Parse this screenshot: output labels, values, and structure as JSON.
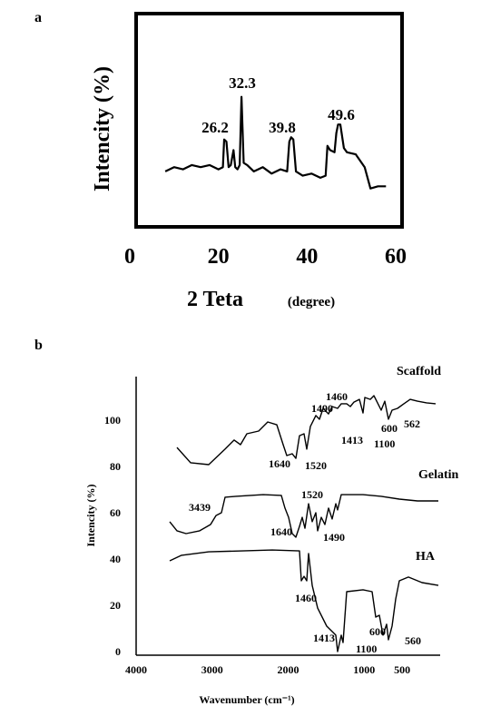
{
  "chart_data": [
    {
      "type": "line",
      "panel_label": "a",
      "y_label": "Intencity (%)",
      "x_label": "2 Teta",
      "x_label_unit": "(degree)",
      "annotations": [
        "26.2",
        "32.3",
        "39.8",
        "49.6"
      ],
      "x": [
        8,
        10,
        12,
        14,
        16,
        18,
        20,
        21,
        21.3,
        21.8,
        22.3,
        22.8,
        23.4,
        23.8,
        24.3,
        24.8,
        25.2,
        25.7,
        26.5,
        28,
        30,
        32,
        34,
        35.5,
        36,
        36.4,
        36.9,
        37.5,
        39,
        41,
        43,
        44.2,
        44.6,
        45.2,
        46.2,
        46.6,
        47,
        47.5,
        48.3,
        49,
        51,
        53,
        54.3,
        56,
        57.8
      ],
      "series": [
        {
          "color": "#000000",
          "values": [
            26,
            28,
            27,
            29,
            28,
            29,
            27,
            28,
            41,
            40,
            28,
            29,
            36,
            28,
            27,
            29,
            61,
            30,
            29,
            26,
            28,
            25,
            27,
            26,
            40,
            42,
            41,
            26,
            24,
            25,
            23,
            24,
            38,
            36,
            35,
            44,
            48,
            48,
            37,
            35,
            34,
            28,
            18,
            19,
            19
          ]
        }
      ],
      "xlim": [
        0,
        60
      ],
      "xticks": [
        0,
        20,
        40,
        60
      ],
      "ylim": [
        0,
        100
      ]
    },
    {
      "type": "line",
      "panel_label": "b",
      "y_label": "Intencity (%)",
      "x_label": "Wavenumber (cm⁻¹)",
      "xlim": [
        4000,
        0
      ],
      "xticks": [
        4000,
        3000,
        2000,
        1000,
        500
      ],
      "ylim": [
        0,
        120
      ],
      "yticks": [
        0,
        20,
        40,
        60,
        80,
        100
      ],
      "series": [
        {
          "name": "Scaffold",
          "color": "#000000",
          "annotations": [
            "1490",
            "1460",
            "1640",
            "1520",
            "1413",
            "1100",
            "600",
            "562"
          ],
          "x": [
            3463,
            3284,
            3045,
            2830,
            2710,
            2627,
            2543,
            2388,
            2269,
            2149,
            2066,
            2018,
            1946,
            1898,
            1851,
            1791,
            1755,
            1707,
            1636,
            1588,
            1540,
            1469,
            1421,
            1349,
            1301,
            1230,
            1182,
            1134,
            1063,
            1015,
            991,
            919,
            872,
            824,
            776,
            728,
            681,
            633,
            561,
            478,
            394,
            299,
            179,
            60
          ],
          "values": [
            88.2,
            81.6,
            80.8,
            87.5,
            91.4,
            89.4,
            94.1,
            95.3,
            99.2,
            98.0,
            89.4,
            84.7,
            85.5,
            83.5,
            93.3,
            94.1,
            87.5,
            97.3,
            102.0,
            100.4,
            105.1,
            102.7,
            105.9,
            105.1,
            107.1,
            107.1,
            105.9,
            107.8,
            109.0,
            103.1,
            109.8,
            109.0,
            110.6,
            107.5,
            104.3,
            108.2,
            100.4,
            104.3,
            105.1,
            107.1,
            109.0,
            108.2,
            107.5,
            107.1
          ]
        },
        {
          "name": "Gelatin",
          "color": "#000000",
          "annotations": [
            "3439",
            "1520",
            "1640",
            "1490"
          ],
          "x": [
            3558,
            3463,
            3343,
            3164,
            3021,
            2949,
            2878,
            2830,
            2687,
            2328,
            2090,
            2042,
            1994,
            1946,
            1898,
            1851,
            1815,
            1779,
            1731,
            1684,
            1636,
            1612,
            1564,
            1516,
            1469,
            1421,
            1373,
            1349,
            1301,
            1254,
            1015,
            776,
            537,
            299,
            24
          ],
          "values": [
            56.1,
            52.2,
            51.0,
            52.2,
            54.9,
            58.8,
            60.0,
            66.7,
            67.1,
            67.8,
            67.5,
            62.0,
            58.0,
            51.0,
            49.4,
            54.1,
            58.0,
            53.3,
            63.9,
            56.1,
            60.0,
            52.2,
            58.0,
            54.9,
            62.0,
            57.3,
            63.9,
            61.2,
            67.8,
            67.8,
            67.8,
            67.1,
            65.9,
            65.1,
            65.1
          ]
        },
        {
          "name": "HA",
          "color": "#000000",
          "annotations": [
            "1460",
            "1413",
            "1100",
            "600",
            "560"
          ],
          "x": [
            3558,
            3403,
            3045,
            2209,
            1851,
            1827,
            1791,
            1755,
            1731,
            1684,
            1612,
            1493,
            1373,
            1349,
            1301,
            1278,
            1230,
            1015,
            896,
            848,
            800,
            752,
            704,
            681,
            633,
            585,
            537,
            418,
            239,
            24
          ],
          "values": [
            39.2,
            41.6,
            43.1,
            43.9,
            43.5,
            30.6,
            32.5,
            30.6,
            42.4,
            28.6,
            18.8,
            11.0,
            7.1,
            0,
            7.1,
            3.9,
            25.9,
            26.7,
            25.9,
            14.9,
            15.7,
            7.1,
            11.8,
            5.1,
            11.0,
            22.7,
            30.6,
            32.2,
            29.8,
            28.6
          ]
        }
      ]
    }
  ]
}
